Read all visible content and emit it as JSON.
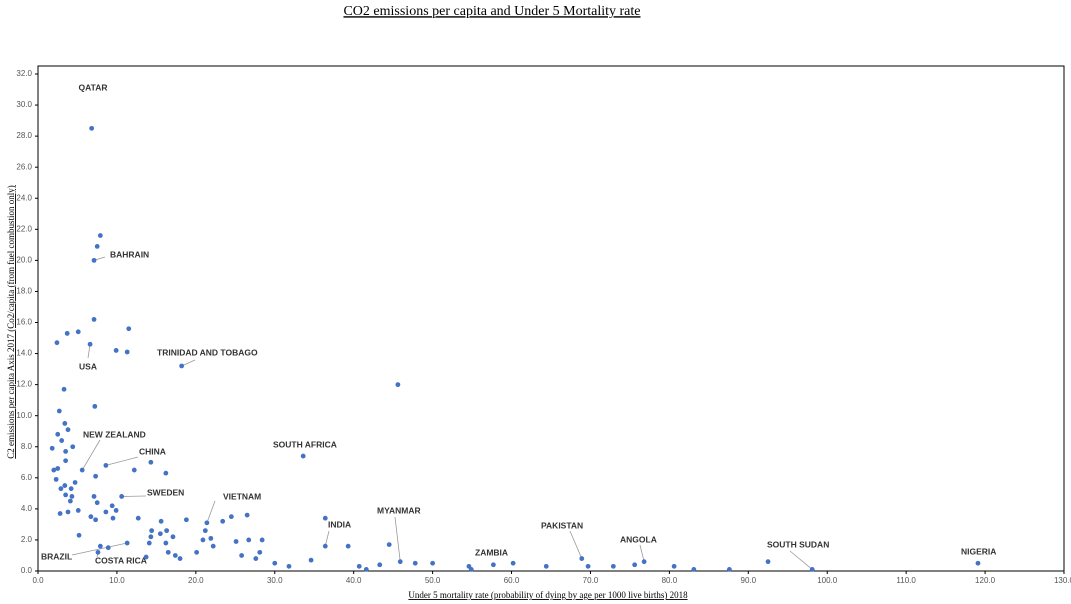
{
  "chart_data": {
    "type": "scatter",
    "title": "CO2 emissions per capita and Under 5 Mortality rate",
    "x_label": "Under 5 mortality rate (probability of dying by age per 1000 live births) 2018",
    "y_label": "C2 emissions per capita Axis 2017 (Co2/capita (from fuel combustion only)",
    "color": "#4472c4",
    "xlim": [
      0,
      130
    ],
    "ylim": [
      0,
      32
    ],
    "xticks": [
      {
        "value": 0,
        "label": "0.0"
      },
      {
        "value": 10,
        "label": "10.0"
      },
      {
        "value": 20,
        "label": "20.0"
      },
      {
        "value": 30,
        "label": "30.0"
      },
      {
        "value": 40,
        "label": "40.0"
      },
      {
        "value": 50,
        "label": "50.0"
      },
      {
        "value": 60,
        "label": "60.0"
      },
      {
        "value": 70,
        "label": "70.0"
      },
      {
        "value": 80,
        "label": "80.0"
      },
      {
        "value": 90,
        "label": "90.0"
      },
      {
        "value": 100,
        "label": "100.0"
      },
      {
        "value": 110,
        "label": "110.0"
      },
      {
        "value": 120,
        "label": "120.0"
      },
      {
        "value": 130,
        "label": "130.0"
      }
    ],
    "yticks": [
      {
        "value": 0,
        "label": "0.0"
      },
      {
        "value": 2,
        "label": "2.0"
      },
      {
        "value": 4,
        "label": "4.0"
      },
      {
        "value": 6,
        "label": "6.0"
      },
      {
        "value": 8,
        "label": "8.0"
      },
      {
        "value": 10,
        "label": "10.0"
      },
      {
        "value": 12,
        "label": "12.0"
      },
      {
        "value": 14,
        "label": "14.0"
      },
      {
        "value": 16,
        "label": "16.0"
      },
      {
        "value": 18,
        "label": "18.0"
      },
      {
        "value": 20,
        "label": "20.0"
      },
      {
        "value": 22,
        "label": "22.0"
      },
      {
        "value": 24,
        "label": "24.0"
      },
      {
        "value": 26,
        "label": "26.0"
      },
      {
        "value": 28,
        "label": "28.0"
      },
      {
        "value": 30,
        "label": "30.0"
      },
      {
        "value": 32,
        "label": "32.0"
      }
    ],
    "x": [
      6.8,
      7.9,
      7.5,
      7.1,
      7.1,
      11.5,
      5.1,
      3.7,
      2.4,
      6.6,
      9.9,
      11.3,
      18.2,
      45.6,
      3.3,
      7.2,
      2.7,
      3.4,
      3.8,
      2.5,
      3.0,
      1.8,
      4.4,
      3.5,
      3.5,
      14.3,
      2.5,
      2.0,
      5.6,
      12.2,
      8.6,
      16.2,
      7.3,
      33.6,
      2.3,
      3.4,
      4.7,
      2.9,
      4.2,
      3.5,
      4.3,
      7.1,
      10.6,
      4.1,
      7.5,
      9.4,
      5.1,
      3.8,
      2.8,
      8.6,
      9.9,
      6.7,
      7.3,
      9.5,
      12.7,
      18.8,
      15.6,
      21.4,
      23.4,
      24.5,
      26.5,
      36.4,
      14.4,
      16.3,
      21.2,
      15.5,
      17.1,
      14.3,
      5.2,
      20.9,
      21.9,
      25.1,
      26.7,
      28.4,
      11.3,
      14.1,
      16.2,
      7.9,
      8.9,
      22.2,
      36.4,
      39.3,
      44.5,
      16.5,
      17.4,
      18.0,
      20.1,
      7.6,
      13.7,
      28.1,
      25.8,
      27.6,
      30.0,
      31.8,
      34.6,
      40.7,
      41.6,
      43.3,
      45.9,
      47.8,
      50.0,
      54.6,
      54.9,
      57.7,
      60.2,
      64.4,
      68.9,
      69.7,
      72.9,
      75.6,
      76.8,
      80.6,
      83.1,
      87.6,
      92.5,
      98.1,
      119.1
    ],
    "values": [
      28.5,
      21.6,
      20.9,
      20.0,
      16.2,
      15.6,
      15.4,
      15.3,
      14.7,
      14.6,
      14.2,
      14.1,
      13.2,
      12.0,
      11.7,
      10.6,
      10.3,
      9.5,
      9.1,
      8.8,
      8.4,
      7.9,
      8.0,
      7.7,
      7.1,
      7.0,
      6.6,
      6.5,
      6.5,
      6.5,
      6.8,
      6.3,
      6.1,
      7.4,
      5.9,
      5.5,
      5.7,
      5.3,
      5.3,
      4.9,
      4.8,
      4.8,
      4.8,
      4.5,
      4.4,
      4.2,
      3.9,
      3.8,
      3.7,
      3.8,
      3.9,
      3.5,
      3.3,
      3.4,
      3.4,
      3.3,
      3.2,
      3.1,
      3.2,
      3.5,
      3.6,
      3.4,
      2.6,
      2.6,
      2.6,
      2.4,
      2.2,
      2.2,
      2.3,
      2.0,
      2.1,
      1.9,
      2.0,
      2.0,
      1.8,
      1.8,
      1.8,
      1.6,
      1.5,
      1.6,
      1.6,
      1.6,
      1.7,
      1.2,
      1.0,
      0.8,
      1.2,
      1.2,
      0.9,
      1.2,
      1.0,
      0.8,
      0.5,
      0.3,
      0.7,
      0.3,
      0.1,
      0.4,
      0.6,
      0.5,
      0.5,
      0.3,
      0.1,
      0.4,
      0.5,
      0.3,
      0.8,
      0.3,
      0.3,
      0.4,
      0.6,
      0.3,
      0.1,
      0.1,
      0.6,
      0.1,
      0.5
    ],
    "point_labels": [
      "QATAR",
      null,
      null,
      "BAHRAIN",
      null,
      null,
      null,
      null,
      null,
      "USA",
      null,
      null,
      "TRINIDAD AND TOBAGO",
      null,
      null,
      null,
      null,
      null,
      null,
      null,
      null,
      null,
      null,
      null,
      null,
      null,
      null,
      null,
      "NEW ZEALAND",
      null,
      "CHINA",
      null,
      null,
      "SOUTH AFRICA",
      null,
      null,
      null,
      null,
      null,
      null,
      null,
      null,
      "SWEDEN",
      null,
      null,
      null,
      null,
      null,
      null,
      null,
      null,
      null,
      null,
      null,
      null,
      null,
      null,
      "VIETNAM",
      null,
      null,
      null,
      null,
      null,
      null,
      null,
      null,
      null,
      null,
      null,
      null,
      null,
      null,
      null,
      null,
      "BRAZIL",
      null,
      null,
      null,
      null,
      null,
      "INDIA",
      null,
      null,
      null,
      null,
      null,
      null,
      "COSTA RICA",
      null,
      null,
      null,
      null,
      null,
      null,
      null,
      null,
      null,
      null,
      "MYANMAR",
      null,
      null,
      null,
      null,
      "ZAMBIA",
      null,
      null,
      "PAKISTAN",
      null,
      null,
      null,
      "ANGOLA",
      null,
      null,
      null,
      null,
      "SOUTH SUDAN",
      "NIGERIA"
    ]
  }
}
